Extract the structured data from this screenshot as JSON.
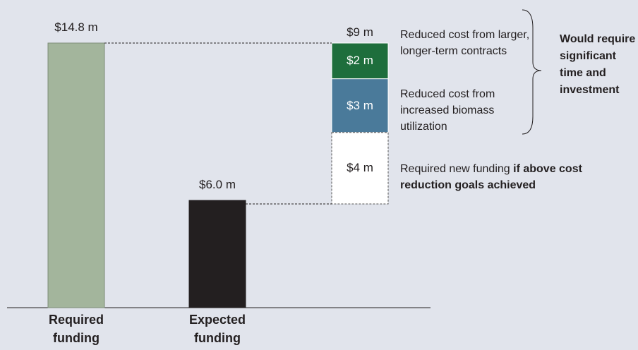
{
  "chart_data": {
    "type": "waterfall",
    "categories": [
      "Required funding",
      "Expected funding"
    ],
    "values": [
      14.8,
      6.0
    ],
    "value_labels": [
      "$14.8 m",
      "$6.0 m"
    ],
    "colors": [
      "#a3b59c",
      "#231f20"
    ],
    "gap": {
      "total": 9,
      "total_label": "$9 m",
      "values": [
        2,
        3,
        4
      ],
      "value_labels": [
        "$2 m",
        "$3 m",
        "$4 m"
      ],
      "colors": [
        "#1e6e3c",
        "#4a7a9a",
        "#ffffff"
      ],
      "notes": [
        {
          "text": "Reduced cost from larger, longer-term contracts"
        },
        {
          "text": "Reduced cost from increased biomass utilization"
        },
        {
          "text": "Required new funding",
          "bold": "if above cost reduction goals achieved"
        }
      ],
      "bracket_note": "Would require significant time and investment"
    }
  }
}
